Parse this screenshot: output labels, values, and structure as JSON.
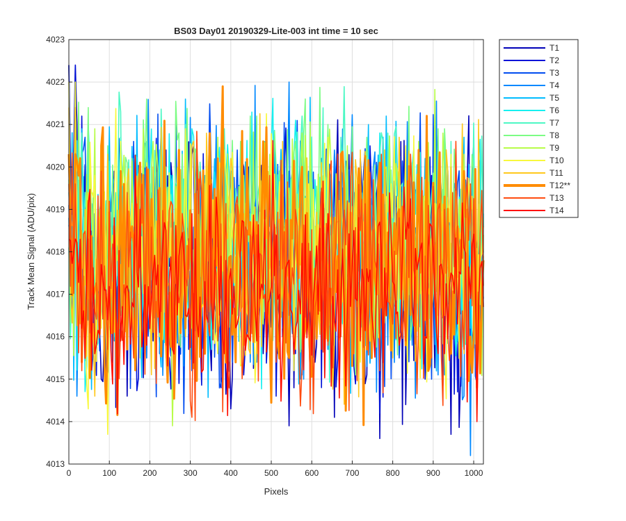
{
  "chart_data": {
    "type": "line",
    "title": "BS03 Day01 20190329-Lite-003 int time = 10 sec",
    "xlabel": "Pixels",
    "ylabel": "Track Mean Signal (ADU/pix)",
    "xlim": [
      0,
      1024
    ],
    "ylim": [
      4013,
      4023
    ],
    "x_ticks": [
      0,
      100,
      200,
      300,
      400,
      500,
      600,
      700,
      800,
      900,
      1000
    ],
    "y_ticks": [
      4013,
      4014,
      4015,
      4016,
      4017,
      4018,
      4019,
      4020,
      4021,
      4022,
      4023
    ],
    "x_tick_labels": [
      "0",
      "100",
      "200",
      "300",
      "400",
      "500",
      "600",
      "700",
      "800",
      "900",
      "1000"
    ],
    "y_tick_labels": [
      "4013",
      "4014",
      "4015",
      "4016",
      "4017",
      "4018",
      "4019",
      "4020",
      "4021",
      "4022",
      "4023"
    ],
    "grid": true,
    "legend_position": "outside-right",
    "x_step": 4,
    "series": [
      {
        "name": "T1",
        "color": "#0000b8",
        "highlight": false,
        "mean": 4017.8,
        "noise": 1.55,
        "values": [
          4022.4,
          4016.2,
          4019.1,
          4017.3,
          4015.0,
          4018.8,
          4019.9,
          4016.7,
          4014.6,
          4018.2,
          4020.1,
          4017.5,
          4015.9,
          4018.9,
          4016.3,
          4019.6,
          4014.9,
          4017.8,
          4020.3,
          4016.6,
          4018.1,
          4015.2,
          4019.0,
          4017.2,
          4014.3,
          4018.6,
          4020.0,
          4016.9,
          4015.6,
          4018.4,
          4019.3,
          4016.0,
          4013.9,
          4018.0,
          4019.7,
          4017.0,
          4015.4,
          4018.7,
          4016.4,
          4014.1,
          4019.2,
          4017.6,
          4016.8,
          4020.2,
          4015.1,
          4018.3,
          4013.6,
          4017.9,
          4019.4,
          4016.5,
          4014.4,
          4018.5,
          4017.1,
          4015.3,
          4019.8,
          4016.1,
          4013.7,
          4018.9,
          4017.4,
          4015.7,
          4014.8,
          4017.7
        ]
      },
      {
        "name": "T2",
        "color": "#0012d8",
        "highlight": false,
        "mean": 4017.8,
        "noise": 1.5,
        "values": [
          4022.4,
          4021.2,
          4017.9,
          4016.1,
          4019.3,
          4015.2,
          4018.4,
          4020.0,
          4016.6,
          4017.7,
          4019.2,
          4015.5,
          4018.0,
          4016.9,
          4020.4,
          4017.1,
          4014.9,
          4018.6,
          4016.3,
          4019.5,
          4017.4,
          4015.8,
          4018.9,
          4016.0,
          4019.9,
          4017.0,
          4015.1,
          4018.2,
          4020.1,
          4016.7,
          4014.6,
          4018.7,
          4017.2,
          4015.6,
          4019.0,
          4016.4,
          4018.1,
          4014.8,
          4017.6,
          4020.3,
          4016.2,
          4018.5,
          4015.3,
          4017.8,
          4019.6,
          4016.8,
          4014.2,
          4018.3,
          4017.5,
          4015.9,
          4019.1,
          4016.5,
          4018.8,
          4015.0,
          4017.3,
          4019.7,
          4016.1,
          4014.7,
          4018.0,
          4016.6,
          4015.4,
          4018.6
        ]
      },
      {
        "name": "T3",
        "color": "#004cf0",
        "highlight": false,
        "mean": 4017.9,
        "noise": 1.45,
        "values": [
          4018.6,
          4020.3,
          4016.4,
          4018.9,
          4017.1,
          4015.3,
          4019.5,
          4016.8,
          4018.2,
          4020.6,
          4016.1,
          4017.7,
          4019.0,
          4015.6,
          4018.4,
          4016.9,
          4020.1,
          4017.3,
          4015.2,
          4018.8,
          4016.5,
          4019.8,
          4017.6,
          4015.9,
          4018.0,
          4020.4,
          4016.7,
          4017.2,
          4019.3,
          4015.7,
          4018.6,
          4016.2,
          4019.9,
          4017.4,
          4015.1,
          4018.3,
          4016.6,
          4020.2,
          4017.0,
          4015.8,
          4018.7,
          4016.3,
          4019.4,
          4017.5,
          4015.4,
          4018.1,
          4016.9,
          4020.0,
          4017.8,
          4015.5,
          4018.5,
          4016.0,
          4019.2,
          4017.1,
          4015.0,
          4018.9,
          4016.4,
          4019.6,
          4017.3,
          4015.2,
          4014.9,
          4018.0
        ]
      },
      {
        "name": "T4",
        "color": "#0088ff",
        "highlight": false,
        "mean": 4018.0,
        "noise": 1.4,
        "values": [
          4019.1,
          4017.0,
          4020.5,
          4016.3,
          4018.7,
          4015.8,
          4019.6,
          4017.4,
          4016.0,
          4020.2,
          4017.9,
          4015.5,
          4018.6,
          4019.8,
          4016.7,
          4018.1,
          4015.9,
          4020.7,
          4017.2,
          4016.4,
          4019.3,
          4018.0,
          4015.6,
          4020.1,
          4016.9,
          4018.5,
          4017.3,
          4015.4,
          4019.7,
          4016.6,
          4018.9,
          4017.6,
          4022.0,
          4016.1,
          4018.3,
          4019.9,
          4016.5,
          4017.8,
          4015.7,
          4020.4,
          4017.1,
          4016.2,
          4019.0,
          4018.4,
          4015.3,
          4020.0,
          4016.8,
          4018.2,
          4019.5,
          4016.0,
          4017.5,
          4015.8,
          4020.3,
          4016.6,
          4018.8,
          4015.1,
          4019.4,
          4016.3,
          4014.6,
          4013.2,
          4018.1,
          4016.9
        ]
      },
      {
        "name": "T5",
        "color": "#00bcff",
        "highlight": false,
        "mean": 4018.1,
        "noise": 1.35,
        "values": [
          4018.8,
          4020.9,
          4017.3,
          4016.1,
          4019.7,
          4018.2,
          4015.9,
          4020.6,
          4017.0,
          4018.9,
          4016.4,
          4020.3,
          4017.7,
          4015.8,
          4019.1,
          4018.5,
          4016.3,
          4021.6,
          4017.2,
          4016.0,
          4019.8,
          4018.0,
          4015.6,
          4020.5,
          4016.8,
          4019.3,
          4017.5,
          4016.2,
          4020.0,
          4018.6,
          4015.9,
          4019.5,
          4016.7,
          4018.1,
          4020.8,
          4016.5,
          4017.9,
          4015.7,
          4019.9,
          4018.3,
          4016.1,
          4020.4,
          4017.4,
          4016.6,
          4019.2,
          4018.7,
          4015.5,
          4021.2,
          4017.1,
          4016.4,
          4019.6,
          4018.0,
          4015.8,
          4020.2,
          4016.9,
          4019.0,
          4017.6,
          4015.9,
          4020.7,
          4016.2,
          4014.9,
          4018.5
        ]
      },
      {
        "name": "T6",
        "color": "#16f0f0",
        "highlight": false,
        "mean": 4018.2,
        "noise": 1.3,
        "values": [
          4019.4,
          4017.6,
          4021.0,
          4016.5,
          4019.0,
          4018.3,
          4016.0,
          4020.7,
          4017.8,
          4015.9,
          4019.6,
          4018.1,
          4016.7,
          4020.4,
          4017.2,
          4019.8,
          4016.4,
          4018.6,
          4020.9,
          4016.9,
          4018.0,
          4015.7,
          4020.1,
          4017.5,
          4016.3,
          4019.3,
          4018.8,
          4016.1,
          4020.6,
          4017.0,
          4019.1,
          4016.6,
          4018.4,
          4021.1,
          4016.2,
          4017.9,
          4019.7,
          4016.8,
          4018.2,
          4015.8,
          4020.3,
          4017.4,
          4016.5,
          4019.5,
          4018.7,
          4016.0,
          4020.8,
          4017.1,
          4019.2,
          4016.3,
          4018.5,
          4020.0,
          4016.7,
          4017.8,
          4015.9,
          4020.5,
          4017.3,
          4016.4,
          4019.9,
          4018.0,
          4016.2,
          4018.9
        ]
      },
      {
        "name": "T7",
        "color": "#4cf8c4",
        "highlight": false,
        "mean": 4018.3,
        "noise": 1.25,
        "values": [
          4018.1,
          4020.8,
          4017.9,
          4016.6,
          4019.8,
          4018.4,
          4016.2,
          4021.3,
          4017.6,
          4016.9,
          4019.4,
          4020.6,
          4017.1,
          4016.4,
          4020.0,
          4018.7,
          4016.0,
          4021.0,
          4017.5,
          4016.8,
          4019.6,
          4018.2,
          4016.3,
          4020.9,
          4017.3,
          4019.0,
          4016.5,
          4018.9,
          4020.4,
          4017.0,
          4016.1,
          4019.7,
          4018.3,
          4016.7,
          4021.2,
          4017.4,
          4016.9,
          4019.2,
          4018.6,
          4016.4,
          4020.7,
          4017.8,
          4016.0,
          4019.9,
          4018.1,
          4016.6,
          4020.3,
          4017.2,
          4019.5,
          4016.8,
          4018.5,
          4020.1,
          4016.2,
          4018.0,
          4019.3,
          4016.5,
          4020.6,
          4017.7,
          4016.3,
          4019.0,
          4016.9,
          4018.6
        ]
      },
      {
        "name": "T8",
        "color": "#7cfc84",
        "highlight": false,
        "mean": 4018.4,
        "noise": 1.2,
        "values": [
          4019.7,
          4018.0,
          4021.4,
          4016.9,
          4019.2,
          4020.5,
          4017.3,
          4016.5,
          4020.1,
          4018.6,
          4016.4,
          4021.6,
          4017.7,
          4019.5,
          4016.7,
          4018.9,
          4020.8,
          4017.0,
          4016.2,
          4019.9,
          4018.3,
          4016.8,
          4020.4,
          4017.5,
          4019.1,
          4016.6,
          4018.7,
          4021.2,
          4017.2,
          4016.3,
          4020.0,
          4018.5,
          4016.9,
          4020.6,
          4017.8,
          4019.4,
          4016.5,
          4018.2,
          4021.0,
          4017.1,
          4016.7,
          4019.8,
          4018.4,
          4016.1,
          4020.7,
          4017.6,
          4019.3,
          4016.8,
          4018.8,
          4020.2,
          4017.0,
          4016.4,
          4019.6,
          4018.1,
          4016.6,
          4020.9,
          4017.4,
          4019.0,
          4016.9,
          4018.5,
          4017.2,
          4018.0
        ]
      },
      {
        "name": "T9",
        "color": "#b8fc48",
        "highlight": false,
        "mean": 4018.3,
        "noise": 1.2,
        "values": [
          4020.2,
          4018.5,
          4016.9,
          4020.9,
          4017.6,
          4019.0,
          4016.4,
          4020.4,
          4018.1,
          4016.7,
          4019.7,
          4017.3,
          4020.6,
          4016.6,
          4018.8,
          4013.9,
          4017.9,
          4020.1,
          4016.2,
          4019.3,
          4018.4,
          4016.8,
          4020.7,
          4017.2,
          4018.9,
          4016.5,
          4019.8,
          4017.7,
          4016.3,
          4020.3,
          4018.2,
          4016.9,
          4019.5,
          4017.5,
          4020.8,
          4016.6,
          4018.6,
          4017.0,
          4019.9,
          4016.4,
          4018.3,
          4020.5,
          4017.1,
          4016.7,
          4019.4,
          4018.0,
          4016.2,
          4020.0,
          4017.8,
          4019.1,
          4016.8,
          4018.7,
          4020.6,
          4017.4,
          4016.5,
          4019.6,
          4018.2,
          4016.9,
          4020.3,
          4017.6,
          4014.9,
          4018.4
        ]
      },
      {
        "name": "T10",
        "color": "#f8f83c",
        "highlight": false,
        "mean": 4017.9,
        "noise": 1.4,
        "values": [
          4022.0,
          4017.6,
          4014.3,
          4019.8,
          4016.2,
          4013.7,
          4018.9,
          4020.6,
          4016.7,
          4018.2,
          4015.5,
          4020.1,
          4017.4,
          4016.0,
          4019.5,
          4018.6,
          4015.8,
          4020.9,
          4017.0,
          4016.4,
          4019.2,
          4018.0,
          4015.6,
          4020.4,
          4016.9,
          4018.7,
          4017.3,
          4015.9,
          4019.9,
          4016.5,
          4018.4,
          4020.2,
          4016.8,
          4017.7,
          4015.7,
          4019.6,
          4018.1,
          4016.3,
          4020.7,
          4017.2,
          4016.6,
          4019.0,
          4018.5,
          4015.4,
          4020.0,
          4017.5,
          4016.1,
          4019.3,
          4018.8,
          4016.0,
          4020.5,
          4017.1,
          4016.7,
          4019.7,
          4018.3,
          4015.8,
          4020.3,
          4017.8,
          4016.2,
          4019.1,
          4014.1,
          4018.6
        ]
      },
      {
        "name": "T11",
        "color": "#ffc81c",
        "highlight": false,
        "mean": 4017.7,
        "noise": 1.4,
        "values": [
          4021.4,
          4016.5,
          4019.4,
          4014.6,
          4018.0,
          4020.3,
          4016.1,
          4017.7,
          4019.6,
          4015.9,
          4018.5,
          4016.6,
          4020.0,
          4017.2,
          4015.5,
          4019.1,
          4018.3,
          4016.0,
          4020.5,
          4017.0,
          4015.8,
          4019.7,
          4018.1,
          4016.4,
          4020.2,
          4016.8,
          4018.9,
          4015.6,
          4019.3,
          4017.6,
          4016.2,
          4020.6,
          4017.3,
          4015.7,
          4019.0,
          4018.6,
          4016.3,
          4020.1,
          4017.1,
          4015.9,
          4019.8,
          4018.2,
          4016.7,
          4020.4,
          4017.5,
          4016.1,
          4019.5,
          4018.4,
          4015.5,
          4020.7,
          4016.9,
          4018.7,
          4015.8,
          4019.2,
          4017.8,
          4016.5,
          4020.0,
          4017.4,
          4015.6,
          4018.8,
          4014.4,
          4017.9
        ]
      },
      {
        "name": "T12**",
        "color": "#ff8c00",
        "highlight": true,
        "mean": 4017.7,
        "noise": 1.5,
        "values": [
          4020.3,
          4015.4,
          4019.2,
          4017.1,
          4020.5,
          4016.0,
          4018.6,
          4019.9,
          4015.7,
          4018.2,
          4020.1,
          4016.4,
          4017.8,
          4019.5,
          4015.9,
          4018.9,
          4020.4,
          4016.2,
          4017.4,
          4019.7,
          4015.6,
          4018.4,
          4020.2,
          4016.7,
          4017.9,
          4019.1,
          4015.8,
          4018.7,
          4020.6,
          4016.1,
          4017.5,
          4019.8,
          4015.5,
          4018.3,
          4020.0,
          4016.6,
          4017.6,
          4019.4,
          4015.9,
          4018.8,
          4020.3,
          4016.3,
          4017.2,
          4019.6,
          4015.7,
          4018.5,
          4020.1,
          4016.5,
          4017.7,
          4019.0,
          4015.8,
          4018.1,
          4020.4,
          4016.4,
          4017.3,
          4019.3,
          4015.6,
          4018.6,
          4019.9,
          4016.0,
          4014.8,
          4017.8
        ]
      },
      {
        "name": "T13",
        "color": "#ff4c10",
        "highlight": false,
        "mean": 4017.4,
        "noise": 1.45,
        "values": [
          4019.6,
          4015.2,
          4018.3,
          4016.6,
          4019.9,
          4015.7,
          4018.0,
          4016.3,
          4019.4,
          4015.5,
          4017.7,
          4020.0,
          4016.1,
          4018.6,
          4015.8,
          4019.1,
          4016.8,
          4017.4,
          4014.1,
          4018.9,
          4016.4,
          4019.6,
          4015.9,
          4017.9,
          4016.2,
          4019.3,
          4015.6,
          4018.4,
          4016.9,
          4019.8,
          4015.4,
          4017.6,
          4016.5,
          4019.0,
          4015.3,
          4018.2,
          4016.7,
          4019.5,
          4015.8,
          4017.8,
          4016.0,
          4019.2,
          4015.6,
          4018.5,
          4016.6,
          4019.7,
          4015.2,
          4017.5,
          4016.3,
          4018.8,
          4015.9,
          4019.4,
          4016.4,
          4017.9,
          4015.5,
          4019.0,
          4016.1,
          4018.3,
          4015.7,
          4019.6,
          4014.4,
          4017.2
        ]
      },
      {
        "name": "T14",
        "color": "#ff0c00",
        "highlight": false,
        "mean": 4017.1,
        "noise": 1.2,
        "values": [
          4018.3,
          4016.2,
          4019.1,
          4015.6,
          4017.7,
          4016.4,
          4018.8,
          4015.9,
          4017.2,
          4016.7,
          4019.0,
          4015.8,
          4017.5,
          4016.1,
          4018.5,
          4015.7,
          4017.9,
          4016.5,
          4018.9,
          4016.0,
          4017.3,
          4016.8,
          4018.6,
          4015.6,
          4017.6,
          4016.3,
          4018.7,
          4015.9,
          4017.1,
          4016.9,
          4018.4,
          4015.8,
          4017.8,
          4016.2,
          4018.2,
          4016.6,
          4017.4,
          4015.7,
          4018.9,
          4016.4,
          4017.0,
          4016.8,
          4018.5,
          4015.9,
          4017.6,
          4016.1,
          4018.7,
          4016.5,
          4017.3,
          4015.8,
          4018.3,
          4016.7,
          4017.8,
          4016.0,
          4018.6,
          4015.6,
          4017.5,
          4016.3,
          4018.1,
          4016.9,
          4014.0,
          4016.7
        ]
      }
    ]
  }
}
